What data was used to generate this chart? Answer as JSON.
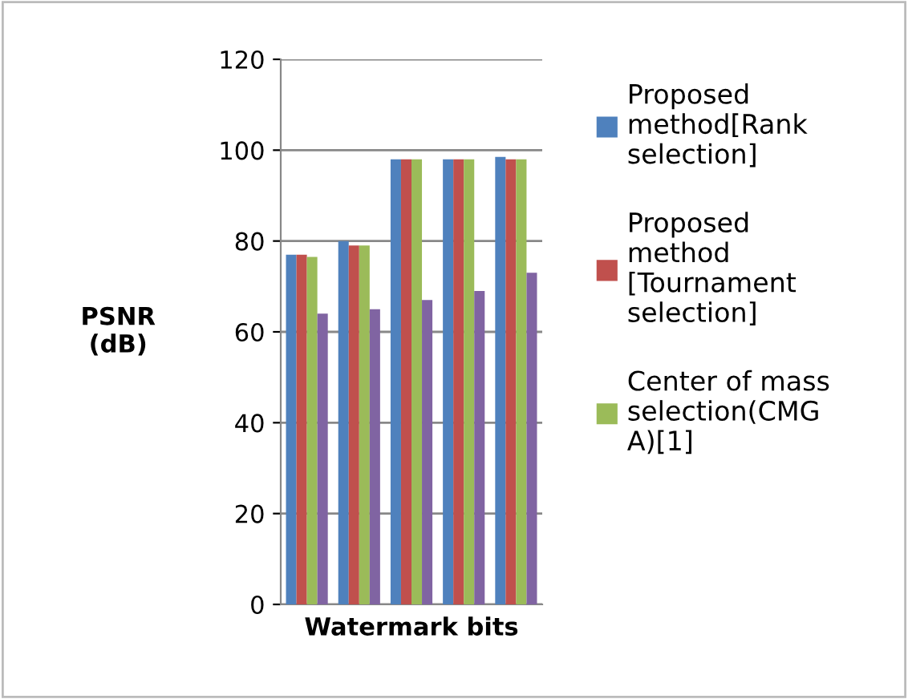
{
  "chart_data": {
    "type": "bar",
    "xlabel": "Watermark bits",
    "ylabel": "PSNR\n(dB)",
    "categories": [
      null,
      null,
      null,
      null,
      null
    ],
    "series": [
      {
        "name": "Proposed\nmethod[Rank\nselection]",
        "color": "#4f81bd",
        "values": [
          77,
          80,
          98,
          98,
          98.5
        ]
      },
      {
        "name": "Proposed\nmethod\n[Tournament\nselection]",
        "color": "#c0504d",
        "values": [
          77,
          79,
          98,
          98,
          98
        ]
      },
      {
        "name": "Center of mass\nselection(CMG\nA)[1]",
        "color": "#9bbb59",
        "values": [
          76.5,
          79,
          98,
          98,
          98
        ]
      },
      {
        "color": "#8064a2",
        "values": [
          64,
          65,
          67,
          69,
          73
        ]
      }
    ],
    "ylim": [
      0,
      120
    ],
    "yticks": [
      0,
      20,
      40,
      60,
      80,
      100,
      120
    ],
    "grid": "y",
    "legend": "right"
  }
}
